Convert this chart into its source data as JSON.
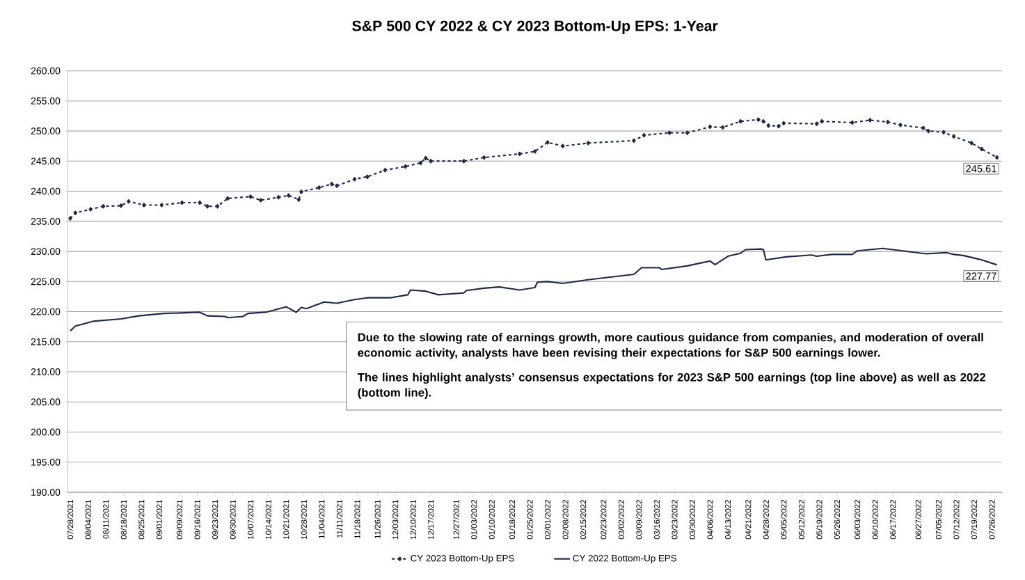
{
  "chart_data": {
    "type": "line",
    "title": "S&P 500 CY 2022 & CY 2023 Bottom-Up EPS: 1-Year",
    "xlim": [
      "2021-07-27",
      "2022-07-30"
    ],
    "xticks": [
      {
        "value": "2021-07-28",
        "label": "07/28/2021"
      },
      {
        "value": "2021-08-04",
        "label": "08/04/2021"
      },
      {
        "value": "2021-08-11",
        "label": "08/11/2021"
      },
      {
        "value": "2021-08-18",
        "label": "08/18/2021"
      },
      {
        "value": "2021-08-25",
        "label": "08/25/2021"
      },
      {
        "value": "2021-09-01",
        "label": "09/01/2021"
      },
      {
        "value": "2021-09-09",
        "label": "09/09/2021"
      },
      {
        "value": "2021-09-16",
        "label": "09/16/2021"
      },
      {
        "value": "2021-09-23",
        "label": "09/23/2021"
      },
      {
        "value": "2021-09-30",
        "label": "09/30/2021"
      },
      {
        "value": "2021-10-07",
        "label": "10/07/2021"
      },
      {
        "value": "2021-10-14",
        "label": "10/14/2021"
      },
      {
        "value": "2021-10-21",
        "label": "10/21/2021"
      },
      {
        "value": "2021-10-28",
        "label": "10/28/2021"
      },
      {
        "value": "2021-11-04",
        "label": "11/04/2021"
      },
      {
        "value": "2021-11-11",
        "label": "11/11/2021"
      },
      {
        "value": "2021-11-18",
        "label": "11/18/2021"
      },
      {
        "value": "2021-11-26",
        "label": "11/26/2021"
      },
      {
        "value": "2021-12-03",
        "label": "12/03/2021"
      },
      {
        "value": "2021-12-10",
        "label": "12/10/2021"
      },
      {
        "value": "2021-12-17",
        "label": "12/17/2021"
      },
      {
        "value": "2021-12-27",
        "label": "12/27/2021"
      },
      {
        "value": "2022-01-03",
        "label": "01/03/2022"
      },
      {
        "value": "2022-01-10",
        "label": "01/10/2022"
      },
      {
        "value": "2022-01-18",
        "label": "01/18/2022"
      },
      {
        "value": "2022-01-25",
        "label": "01/25/2022"
      },
      {
        "value": "2022-02-01",
        "label": "02/01/2022"
      },
      {
        "value": "2022-02-08",
        "label": "02/08/2022"
      },
      {
        "value": "2022-02-15",
        "label": "02/15/2022"
      },
      {
        "value": "2022-02-23",
        "label": "02/23/2022"
      },
      {
        "value": "2022-03-02",
        "label": "03/02/2022"
      },
      {
        "value": "2022-03-09",
        "label": "03/09/2022"
      },
      {
        "value": "2022-03-16",
        "label": "03/16/2022"
      },
      {
        "value": "2022-03-23",
        "label": "03/23/2022"
      },
      {
        "value": "2022-03-30",
        "label": "03/30/2022"
      },
      {
        "value": "2022-04-06",
        "label": "04/06/2022"
      },
      {
        "value": "2022-04-13",
        "label": "04/13/2022"
      },
      {
        "value": "2022-04-21",
        "label": "04/21/2022"
      },
      {
        "value": "2022-04-28",
        "label": "04/28/2022"
      },
      {
        "value": "2022-05-05",
        "label": "05/05/2022"
      },
      {
        "value": "2022-05-12",
        "label": "05/12/2022"
      },
      {
        "value": "2022-05-19",
        "label": "05/19/2022"
      },
      {
        "value": "2022-05-26",
        "label": "05/26/2022"
      },
      {
        "value": "2022-06-03",
        "label": "06/03/2022"
      },
      {
        "value": "2022-06-10",
        "label": "06/10/2022"
      },
      {
        "value": "2022-06-17",
        "label": "06/17/2022"
      },
      {
        "value": "2022-06-27",
        "label": "06/27/2022"
      },
      {
        "value": "2022-07-05",
        "label": "07/05/2022"
      },
      {
        "value": "2022-07-12",
        "label": "07/12/2022"
      },
      {
        "value": "2022-07-19",
        "label": "07/19/2022"
      },
      {
        "value": "2022-07-26",
        "label": "07/26/2022"
      }
    ],
    "ylim": [
      190,
      260
    ],
    "yticks": [
      {
        "value": 190,
        "label": "190.00"
      },
      {
        "value": 195,
        "label": "195.00"
      },
      {
        "value": 200,
        "label": "200.00"
      },
      {
        "value": 205,
        "label": "205.00"
      },
      {
        "value": 210,
        "label": "210.00"
      },
      {
        "value": 215,
        "label": "215.00"
      },
      {
        "value": 220,
        "label": "220.00"
      },
      {
        "value": 225,
        "label": "225.00"
      },
      {
        "value": 230,
        "label": "230.00"
      },
      {
        "value": 235,
        "label": "235.00"
      },
      {
        "value": 240,
        "label": "240.00"
      },
      {
        "value": 245,
        "label": "245.00"
      },
      {
        "value": 250,
        "label": "250.00"
      },
      {
        "value": 255,
        "label": "255.00"
      },
      {
        "value": 260,
        "label": "260.00"
      }
    ],
    "grid": "y",
    "legend": "bottom",
    "series": [
      {
        "name": "CY 2023 Bottom-Up EPS",
        "color": "#1f2a4a",
        "line_style": "dashed",
        "marker": "diamond",
        "x": [
          "2021-07-28",
          "2021-07-30",
          "2021-08-05",
          "2021-08-10",
          "2021-08-17",
          "2021-08-20",
          "2021-08-26",
          "2021-09-02",
          "2021-09-10",
          "2021-09-17",
          "2021-09-20",
          "2021-09-24",
          "2021-09-28",
          "2021-10-07",
          "2021-10-11",
          "2021-10-18",
          "2021-10-22",
          "2021-10-26",
          "2021-10-27",
          "2021-11-03",
          "2021-11-08",
          "2021-11-10",
          "2021-11-17",
          "2021-11-22",
          "2021-11-29",
          "2021-12-07",
          "2021-12-13",
          "2021-12-15",
          "2021-12-17",
          "2021-12-30",
          "2022-01-07",
          "2022-01-21",
          "2022-01-27",
          "2022-02-01",
          "2022-02-07",
          "2022-02-17",
          "2022-03-07",
          "2022-03-11",
          "2022-03-21",
          "2022-03-28",
          "2022-04-06",
          "2022-04-11",
          "2022-04-18",
          "2022-04-25",
          "2022-04-27",
          "2022-04-29",
          "2022-05-03",
          "2022-05-05",
          "2022-05-18",
          "2022-05-20",
          "2022-06-01",
          "2022-06-08",
          "2022-06-15",
          "2022-06-20",
          "2022-06-29",
          "2022-07-01",
          "2022-07-07",
          "2022-07-11",
          "2022-07-18",
          "2022-07-22",
          "2022-07-28"
        ],
        "values": [
          235.5,
          236.4,
          237.0,
          237.5,
          237.6,
          238.3,
          237.7,
          237.7,
          238.1,
          238.1,
          237.5,
          237.5,
          238.8,
          239.1,
          238.5,
          239.0,
          239.3,
          238.6,
          239.9,
          240.6,
          241.2,
          240.9,
          242.0,
          242.4,
          243.5,
          244.1,
          244.7,
          245.5,
          245.0,
          245.0,
          245.6,
          246.2,
          246.6,
          248.1,
          247.5,
          248.0,
          248.4,
          249.3,
          249.7,
          249.7,
          250.7,
          250.6,
          251.6,
          251.9,
          251.6,
          250.9,
          250.8,
          251.3,
          251.2,
          251.6,
          251.4,
          251.8,
          251.5,
          251.0,
          250.5,
          250.0,
          249.8,
          249.1,
          248.0,
          247.0,
          245.61
        ]
      },
      {
        "name": "CY 2022 Bottom-Up EPS",
        "color": "#1f2a4a",
        "line_style": "solid",
        "marker": "none",
        "x": [
          "2021-07-28",
          "2021-07-30",
          "2021-08-06",
          "2021-08-17",
          "2021-08-24",
          "2021-09-03",
          "2021-09-17",
          "2021-09-20",
          "2021-09-27",
          "2021-09-28",
          "2021-10-04",
          "2021-10-06",
          "2021-10-13",
          "2021-10-21",
          "2021-10-25",
          "2021-10-27",
          "2021-10-29",
          "2021-11-05",
          "2021-11-10",
          "2021-11-17",
          "2021-11-22",
          "2021-12-01",
          "2021-12-08",
          "2021-12-09",
          "2021-12-15",
          "2021-12-20",
          "2021-12-30",
          "2021-12-31",
          "2022-01-07",
          "2022-01-13",
          "2022-01-21",
          "2022-01-27",
          "2022-01-28",
          "2022-02-01",
          "2022-02-07",
          "2022-02-17",
          "2022-03-07",
          "2022-03-10",
          "2022-03-17",
          "2022-03-18",
          "2022-03-28",
          "2022-04-06",
          "2022-04-08",
          "2022-04-13",
          "2022-04-18",
          "2022-04-20",
          "2022-04-26",
          "2022-04-27",
          "2022-04-28",
          "2022-05-06",
          "2022-05-16",
          "2022-05-18",
          "2022-05-24",
          "2022-06-01",
          "2022-06-03",
          "2022-06-13",
          "2022-06-17",
          "2022-06-30",
          "2022-07-08",
          "2022-07-11",
          "2022-07-15",
          "2022-07-19",
          "2022-07-22",
          "2022-07-28"
        ],
        "values": [
          216.8,
          217.6,
          218.4,
          218.8,
          219.3,
          219.7,
          219.9,
          219.3,
          219.2,
          219.0,
          219.2,
          219.7,
          219.9,
          220.8,
          219.9,
          220.7,
          220.5,
          221.6,
          221.4,
          222.0,
          222.3,
          222.3,
          222.8,
          223.6,
          223.4,
          222.8,
          223.1,
          223.5,
          223.9,
          224.1,
          223.6,
          224.0,
          224.9,
          225.0,
          224.7,
          225.3,
          226.2,
          227.3,
          227.3,
          227.0,
          227.6,
          228.4,
          227.8,
          229.2,
          229.7,
          230.3,
          230.4,
          230.3,
          228.6,
          229.1,
          229.4,
          229.2,
          229.5,
          229.5,
          230.1,
          230.5,
          230.3,
          229.6,
          229.8,
          229.5,
          229.3,
          228.9,
          228.6,
          227.77
        ]
      }
    ],
    "annotations": [
      {
        "text": "245.61",
        "x": "2022-07-28",
        "y": 245.61
      },
      {
        "text": "227.77",
        "x": "2022-07-28",
        "y": 227.77
      },
      "Due to the slowing rate of earnings growth, more cautious guidance from companies, and moderation of overall economic activity, analysts have been revising their expectations for S&P 500 earnings lower.",
      "The lines highlight analysts’ consensus expectations for 2023 S&P 500 earnings (top line above) as well as 2022 (bottom line)."
    ]
  }
}
